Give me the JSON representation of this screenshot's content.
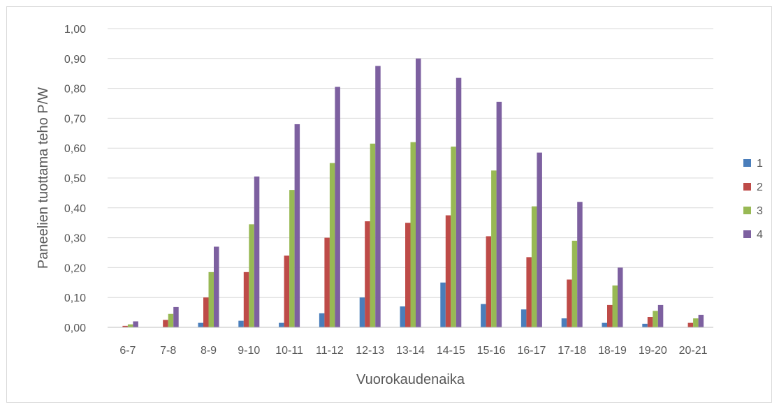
{
  "chart_data": {
    "type": "bar",
    "title": "",
    "xlabel": "Vuorokaudenaika",
    "ylabel": "Paneelien tuottama teho P/W",
    "ylim": [
      0,
      1.0
    ],
    "yticks": [
      "0,00",
      "0,10",
      "0,20",
      "0,30",
      "0,40",
      "0,50",
      "0,60",
      "0,70",
      "0,80",
      "0,90",
      "1,00"
    ],
    "grid": true,
    "legend_position": "right",
    "categories": [
      "6-7",
      "7-8",
      "8-9",
      "9-10",
      "10-11",
      "11-12",
      "12-13",
      "13-14",
      "14-15",
      "15-16",
      "16-17",
      "17-18",
      "18-19",
      "19-20",
      "20-21"
    ],
    "series": [
      {
        "name": "1",
        "color": "#4a7ebb",
        "values": [
          0.0,
          0.0,
          0.015,
          0.022,
          0.015,
          0.047,
          0.1,
          0.07,
          0.15,
          0.078,
          0.06,
          0.03,
          0.015,
          0.012,
          0.0
        ]
      },
      {
        "name": "2",
        "color": "#be4b48",
        "values": [
          0.005,
          0.025,
          0.1,
          0.185,
          0.24,
          0.3,
          0.355,
          0.35,
          0.375,
          0.305,
          0.235,
          0.16,
          0.075,
          0.035,
          0.015
        ]
      },
      {
        "name": "3",
        "color": "#98b954",
        "values": [
          0.01,
          0.045,
          0.185,
          0.345,
          0.46,
          0.55,
          0.615,
          0.62,
          0.605,
          0.525,
          0.405,
          0.29,
          0.14,
          0.055,
          0.03
        ]
      },
      {
        "name": "4",
        "color": "#7d60a0",
        "values": [
          0.02,
          0.068,
          0.27,
          0.505,
          0.68,
          0.805,
          0.875,
          0.9,
          0.835,
          0.755,
          0.585,
          0.42,
          0.2,
          0.075,
          0.042
        ]
      }
    ]
  }
}
